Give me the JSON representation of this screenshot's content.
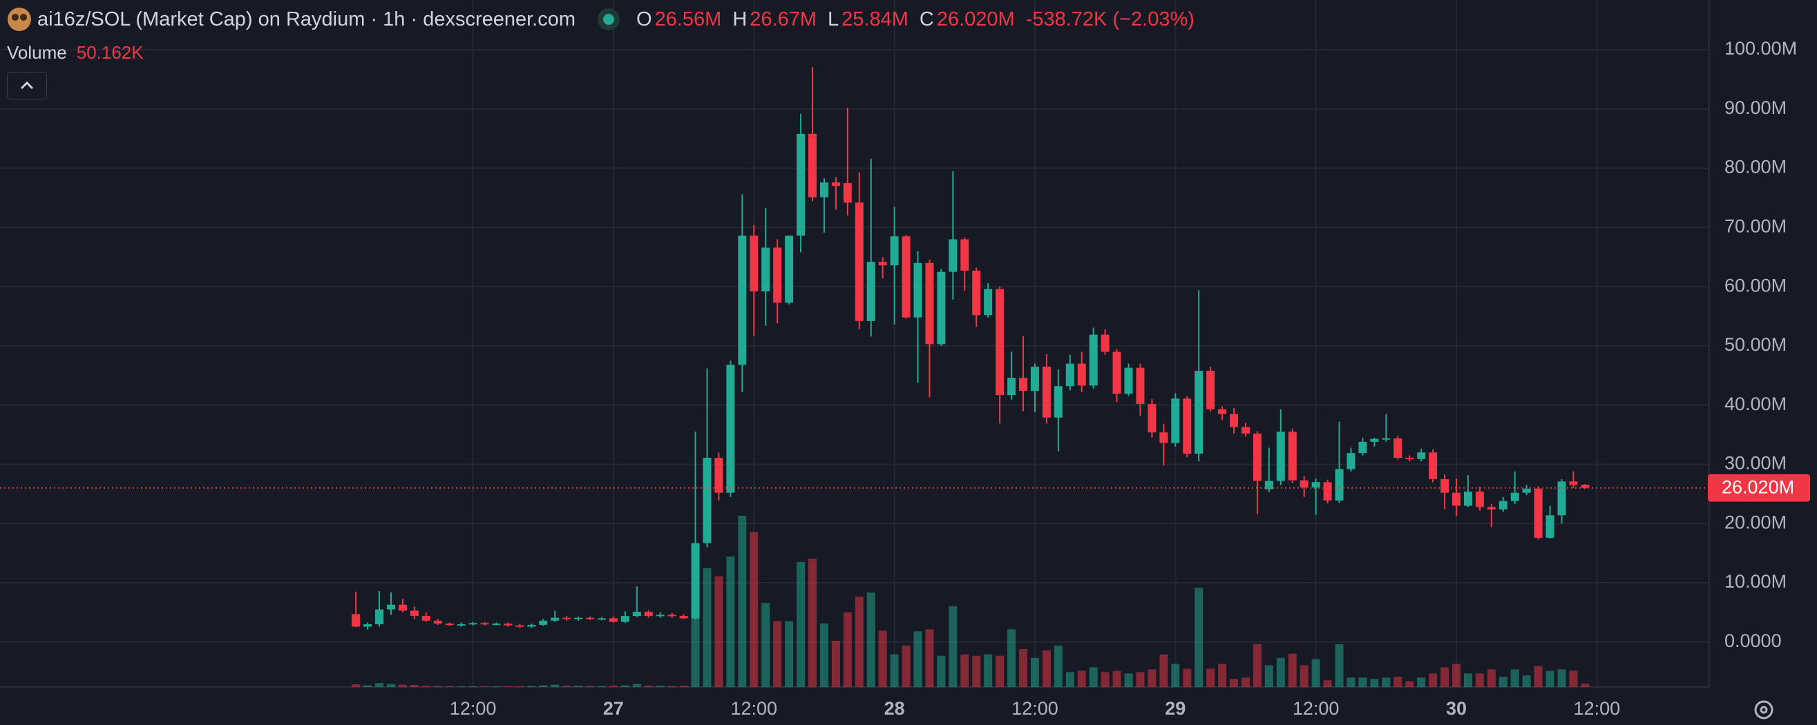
{
  "header": {
    "pair": "ai16z/SOL (Market Cap) on Raydium · 1h · dexscreener.com",
    "open_prefix": "O",
    "open": "26.56M",
    "high_prefix": "H",
    "high": "26.67M",
    "low_prefix": "L",
    "low": "25.84M",
    "close_prefix": "C",
    "close": "26.020M",
    "change": "-538.72K (−2.03%)",
    "volume_name": "Volume",
    "volume": "50.162K"
  },
  "chart_data": {
    "type": "candlestick",
    "up_color": "#22ab94",
    "down_color": "#f23645",
    "grid": true,
    "xlim": [
      -28.4,
      117.6
    ],
    "xticks": [
      {
        "value": 12,
        "label": "12:00"
      },
      {
        "value": 24,
        "label": "27"
      },
      {
        "value": 36,
        "label": "12:00"
      },
      {
        "value": 48,
        "label": "28"
      },
      {
        "value": 60,
        "label": "12:00"
      },
      {
        "value": 72,
        "label": "29"
      },
      {
        "value": 84,
        "label": "12:00"
      },
      {
        "value": 96,
        "label": "30"
      },
      {
        "value": 108,
        "label": "12:00"
      }
    ],
    "ylim": [
      -7.6,
      108.4
    ],
    "yticks": [
      {
        "value": 0,
        "label": "0.0000"
      },
      {
        "value": 10,
        "label": "10.00M"
      },
      {
        "value": 20,
        "label": "20.00M"
      },
      {
        "value": 30,
        "label": "30.00M"
      },
      {
        "value": 40,
        "label": "40.00M"
      },
      {
        "value": 50,
        "label": "50.00M"
      },
      {
        "value": 60,
        "label": "60.00M"
      },
      {
        "value": 70,
        "label": "70.00M"
      },
      {
        "value": 80,
        "label": "80.00M"
      },
      {
        "value": 90,
        "label": "90.00M"
      },
      {
        "value": 100,
        "label": "100.00M"
      }
    ],
    "last_price": {
      "value": 26.02,
      "label": "26.020M"
    },
    "x": [
      2,
      3,
      4,
      5,
      6,
      7,
      8,
      9,
      10,
      11,
      12,
      13,
      14,
      15,
      16,
      17,
      18,
      19,
      20,
      21,
      22,
      23,
      24,
      25,
      26,
      27,
      28,
      29,
      30,
      31,
      32,
      33,
      34,
      35,
      36,
      37,
      38,
      39,
      40,
      41,
      42,
      43,
      44,
      45,
      46,
      47,
      48,
      49,
      50,
      51,
      52,
      53,
      54,
      55,
      56,
      57,
      58,
      59,
      60,
      61,
      62,
      63,
      64,
      65,
      66,
      67,
      68,
      69,
      70,
      71,
      72,
      73,
      74,
      75,
      76,
      77,
      78,
      79,
      80,
      81,
      82,
      83,
      84,
      85,
      86,
      87,
      88,
      89,
      90,
      91,
      92,
      93,
      94,
      95,
      96,
      97,
      98,
      99,
      100,
      101,
      102,
      103,
      104,
      105,
      106,
      107
    ],
    "open": [
      4.7,
      2.6,
      3.0,
      5.5,
      6.3,
      5.3,
      4.4,
      3.6,
      3.1,
      2.9,
      3.0,
      3.2,
      3.0,
      3.1,
      2.8,
      2.6,
      2.9,
      3.6,
      4.1,
      3.9,
      4.1,
      3.9,
      4.0,
      3.4,
      4.4,
      5.1,
      4.4,
      4.6,
      4.4,
      4.0,
      16.7,
      31.1,
      25.2,
      46.8,
      68.6,
      59.2,
      66.6,
      57.3,
      68.6,
      85.8,
      75.1,
      77.6,
      77.5,
      74.2,
      54.2,
      64.2,
      63.6,
      68.5,
      54.8,
      64.0,
      50.3,
      62.5,
      68.0,
      62.7,
      55.2,
      59.6,
      41.7,
      44.6,
      42.4,
      46.5,
      37.9,
      43.2,
      47.0,
      43.3,
      51.9,
      49.0,
      41.9,
      46.3,
      40.2,
      35.4,
      33.6,
      41.1,
      31.8,
      45.8,
      39.3,
      38.5,
      36.3,
      35.2,
      25.8,
      27.2,
      35.5,
      27.3,
      26.1,
      27.0,
      23.9,
      29.2,
      31.9,
      33.8,
      34.3,
      34.4,
      31.1,
      30.9,
      32.0,
      27.5,
      25.2,
      23.0,
      25.4,
      22.8,
      22.4,
      23.8,
      25.2,
      25.9,
      17.6,
      21.4,
      27.1,
      26.56
    ],
    "high": [
      8.5,
      3.3,
      8.6,
      8.4,
      7.3,
      6.0,
      5.0,
      3.9,
      3.3,
      3.3,
      3.4,
      3.4,
      3.3,
      3.3,
      3.1,
      3.1,
      3.9,
      5.3,
      4.4,
      4.3,
      4.3,
      4.2,
      4.3,
      5.2,
      9.4,
      5.4,
      5.0,
      4.9,
      4.7,
      35.5,
      46.2,
      32.0,
      47.5,
      75.6,
      70.4,
      73.3,
      68.0,
      68.6,
      89.2,
      97.1,
      78.3,
      78.5,
      90.2,
      79.3,
      81.6,
      65.0,
      73.5,
      68.7,
      66.0,
      64.6,
      63.0,
      79.5,
      68.3,
      63.2,
      60.6,
      60.0,
      49.0,
      51.7,
      47.0,
      48.6,
      46.0,
      48.5,
      49.0,
      53.1,
      52.8,
      49.5,
      47.0,
      47.0,
      41.0,
      36.8,
      42.0,
      41.5,
      59.4,
      46.5,
      39.8,
      39.5,
      37.0,
      35.6,
      32.8,
      39.3,
      36.0,
      28.0,
      27.6,
      27.4,
      37.2,
      32.8,
      34.5,
      34.5,
      38.5,
      34.8,
      31.5,
      32.6,
      32.5,
      28.3,
      27.6,
      28.2,
      26.2,
      23.3,
      24.5,
      28.8,
      26.5,
      26.3,
      23.0,
      27.5,
      28.8,
      26.67
    ],
    "low": [
      2.5,
      2.1,
      2.6,
      4.6,
      5.0,
      3.9,
      3.4,
      2.9,
      2.7,
      2.6,
      2.8,
      2.8,
      2.8,
      2.6,
      2.4,
      2.4,
      2.7,
      3.4,
      3.6,
      3.6,
      3.7,
      3.7,
      3.3,
      3.2,
      4.2,
      4.1,
      4.1,
      4.1,
      3.9,
      3.8,
      16.0,
      23.9,
      24.5,
      42.2,
      51.7,
      53.4,
      53.8,
      57.0,
      65.8,
      74.4,
      69.1,
      73.0,
      72.0,
      52.8,
      51.6,
      61.4,
      53.6,
      54.6,
      43.8,
      41.3,
      50.0,
      57.8,
      59.3,
      53.2,
      54.8,
      36.9,
      40.9,
      39.0,
      38.8,
      36.9,
      32.2,
      42.5,
      42.2,
      42.8,
      48.5,
      40.5,
      41.5,
      38.2,
      34.5,
      29.8,
      33.0,
      31.2,
      30.5,
      38.9,
      37.5,
      35.2,
      34.7,
      21.6,
      25.3,
      26.5,
      26.8,
      24.5,
      21.5,
      23.4,
      23.5,
      28.8,
      31.5,
      33.0,
      33.8,
      30.8,
      30.5,
      30.5,
      27.0,
      22.4,
      21.3,
      22.8,
      22.2,
      19.4,
      22.0,
      23.3,
      24.8,
      17.3,
      17.5,
      20.0,
      26.0,
      25.84
    ],
    "close": [
      2.6,
      3.0,
      5.5,
      6.3,
      5.3,
      4.4,
      3.6,
      3.1,
      2.9,
      3.0,
      3.2,
      3.0,
      3.1,
      2.8,
      2.6,
      2.9,
      3.6,
      4.1,
      3.9,
      4.1,
      3.9,
      4.0,
      3.4,
      4.4,
      5.1,
      4.4,
      4.6,
      4.4,
      4.0,
      16.7,
      31.1,
      25.2,
      46.8,
      68.6,
      59.2,
      66.6,
      57.3,
      68.6,
      85.8,
      75.1,
      77.6,
      77.0,
      74.2,
      54.2,
      64.2,
      63.6,
      68.5,
      54.8,
      64.0,
      50.3,
      62.5,
      68.0,
      62.7,
      55.2,
      59.6,
      41.7,
      44.6,
      42.4,
      46.5,
      37.9,
      43.2,
      47.0,
      43.3,
      51.9,
      49.0,
      41.9,
      46.3,
      40.2,
      35.4,
      33.6,
      41.1,
      31.8,
      45.8,
      39.3,
      38.5,
      36.3,
      35.2,
      27.2,
      27.2,
      35.5,
      27.3,
      26.1,
      27.0,
      23.9,
      29.2,
      31.9,
      33.8,
      34.3,
      34.4,
      31.1,
      30.9,
      32.0,
      27.5,
      25.2,
      23.0,
      25.4,
      22.8,
      22.4,
      23.8,
      25.2,
      25.9,
      17.6,
      21.4,
      27.1,
      26.5,
      26.02
    ],
    "volume": [
      40,
      25,
      60,
      45,
      35,
      30,
      20,
      15,
      12,
      10,
      10,
      12,
      10,
      10,
      12,
      15,
      25,
      35,
      20,
      18,
      15,
      14,
      20,
      25,
      45,
      20,
      18,
      15,
      18,
      2100,
      1750,
      1630,
      1920,
      2520,
      2280,
      1240,
      970,
      970,
      1840,
      1890,
      935,
      680,
      1100,
      1330,
      1390,
      830,
      480,
      610,
      820,
      850,
      460,
      1190,
      480,
      460,
      480,
      460,
      850,
      560,
      430,
      540,
      610,
      220,
      240,
      290,
      220,
      240,
      200,
      220,
      260,
      480,
      340,
      270,
      1460,
      270,
      340,
      120,
      140,
      630,
      320,
      430,
      490,
      320,
      410,
      100,
      630,
      140,
      140,
      120,
      140,
      150,
      85,
      140,
      200,
      290,
      340,
      200,
      200,
      260,
      150,
      260,
      170,
      310,
      240,
      260,
      240,
      50.162
    ]
  }
}
